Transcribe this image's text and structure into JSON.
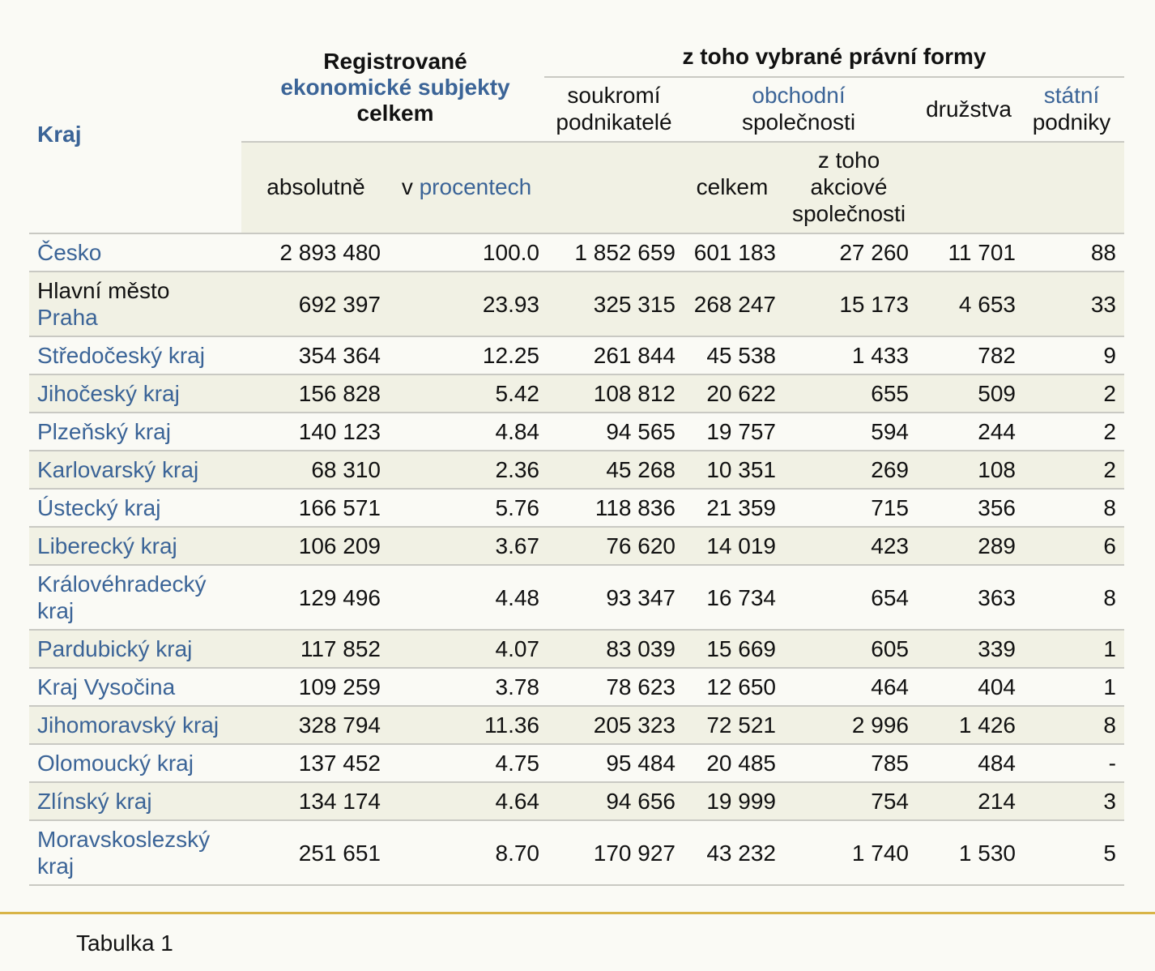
{
  "header": {
    "kraj": "Kraj",
    "registrovane": {
      "line1": "Registrované",
      "line2": "ekonomické subjekty",
      "line3": "celkem"
    },
    "z_toho": "z toho vybrané právní formy",
    "soukromi": {
      "line1": "soukromí",
      "line2": "podnikatelé"
    },
    "obchodni": {
      "line1": "obchodní",
      "line2": "společnosti"
    },
    "druzstva": "družstva",
    "statni": {
      "line1": "státní",
      "line2": "podniky"
    },
    "absolutne": "absolutně",
    "v_procentech": {
      "prefix": "v ",
      "link": "procentech"
    },
    "celkem": "celkem",
    "akciove": {
      "line1": "z toho",
      "line2": "akciové",
      "line3": "společnosti"
    }
  },
  "rows": [
    {
      "name1": "Česko",
      "name2": "",
      "abs": "2 893 480",
      "pct": "100.0",
      "souk": "1 852 659",
      "obch": "601 183",
      "akc": "27 260",
      "druz": "11 701",
      "stat": "88"
    },
    {
      "name1": "Hlavní město",
      "name2": "Praha",
      "abs": "692 397",
      "pct": "23.93",
      "souk": "325 315",
      "obch": "268 247",
      "akc": "15 173",
      "druz": "4 653",
      "stat": "33"
    },
    {
      "name1": "Středočeský kraj",
      "name2": "",
      "abs": "354 364",
      "pct": "12.25",
      "souk": "261 844",
      "obch": "45 538",
      "akc": "1 433",
      "druz": "782",
      "stat": "9"
    },
    {
      "name1": "Jihočeský kraj",
      "name2": "",
      "abs": "156 828",
      "pct": "5.42",
      "souk": "108 812",
      "obch": "20 622",
      "akc": "655",
      "druz": "509",
      "stat": "2"
    },
    {
      "name1": "Plzeňský kraj",
      "name2": "",
      "abs": "140 123",
      "pct": "4.84",
      "souk": "94 565",
      "obch": "19 757",
      "akc": "594",
      "druz": "244",
      "stat": "2"
    },
    {
      "name1": "Karlovarský kraj",
      "name2": "",
      "abs": "68 310",
      "pct": "2.36",
      "souk": "45 268",
      "obch": "10 351",
      "akc": "269",
      "druz": "108",
      "stat": "2"
    },
    {
      "name1": "Ústecký kraj",
      "name2": "",
      "abs": "166 571",
      "pct": "5.76",
      "souk": "118 836",
      "obch": "21 359",
      "akc": "715",
      "druz": "356",
      "stat": "8"
    },
    {
      "name1": "Liberecký kraj",
      "name2": "",
      "abs": "106 209",
      "pct": "3.67",
      "souk": "76 620",
      "obch": "14 019",
      "akc": "423",
      "druz": "289",
      "stat": "6"
    },
    {
      "name1": "Královéhradecký",
      "name2": "kraj",
      "abs": "129 496",
      "pct": "4.48",
      "souk": "93 347",
      "obch": "16 734",
      "akc": "654",
      "druz": "363",
      "stat": "8"
    },
    {
      "name1": "Pardubický kraj",
      "name2": "",
      "abs": "117 852",
      "pct": "4.07",
      "souk": "83 039",
      "obch": "15 669",
      "akc": "605",
      "druz": "339",
      "stat": "1"
    },
    {
      "name1": "Kraj Vysočina",
      "name2": "",
      "abs": "109 259",
      "pct": "3.78",
      "souk": "78 623",
      "obch": "12 650",
      "akc": "464",
      "druz": "404",
      "stat": "1"
    },
    {
      "name1": "Jihomoravský kraj",
      "name2": "",
      "abs": "328 794",
      "pct": "11.36",
      "souk": "205 323",
      "obch": "72 521",
      "akc": "2 996",
      "druz": "1 426",
      "stat": "8"
    },
    {
      "name1": "Olomoucký kraj",
      "name2": "",
      "abs": "137 452",
      "pct": "4.75",
      "souk": "95 484",
      "obch": "20 485",
      "akc": "785",
      "druz": "484",
      "stat": "-"
    },
    {
      "name1": "Zlínský kraj",
      "name2": "",
      "abs": "134 174",
      "pct": "4.64",
      "souk": "94 656",
      "obch": "19 999",
      "akc": "754",
      "druz": "214",
      "stat": "3"
    },
    {
      "name1": "Moravskoslezský",
      "name2": "kraj",
      "abs": "251 651",
      "pct": "8.70",
      "souk": "170 927",
      "obch": "43 232",
      "akc": "1 740",
      "druz": "1 530",
      "stat": "5"
    }
  ],
  "caption": "Tabulka 1",
  "colors": {
    "link": "#3b6497",
    "shade": "#f1f1e4",
    "footer_line": "#d8b447"
  }
}
